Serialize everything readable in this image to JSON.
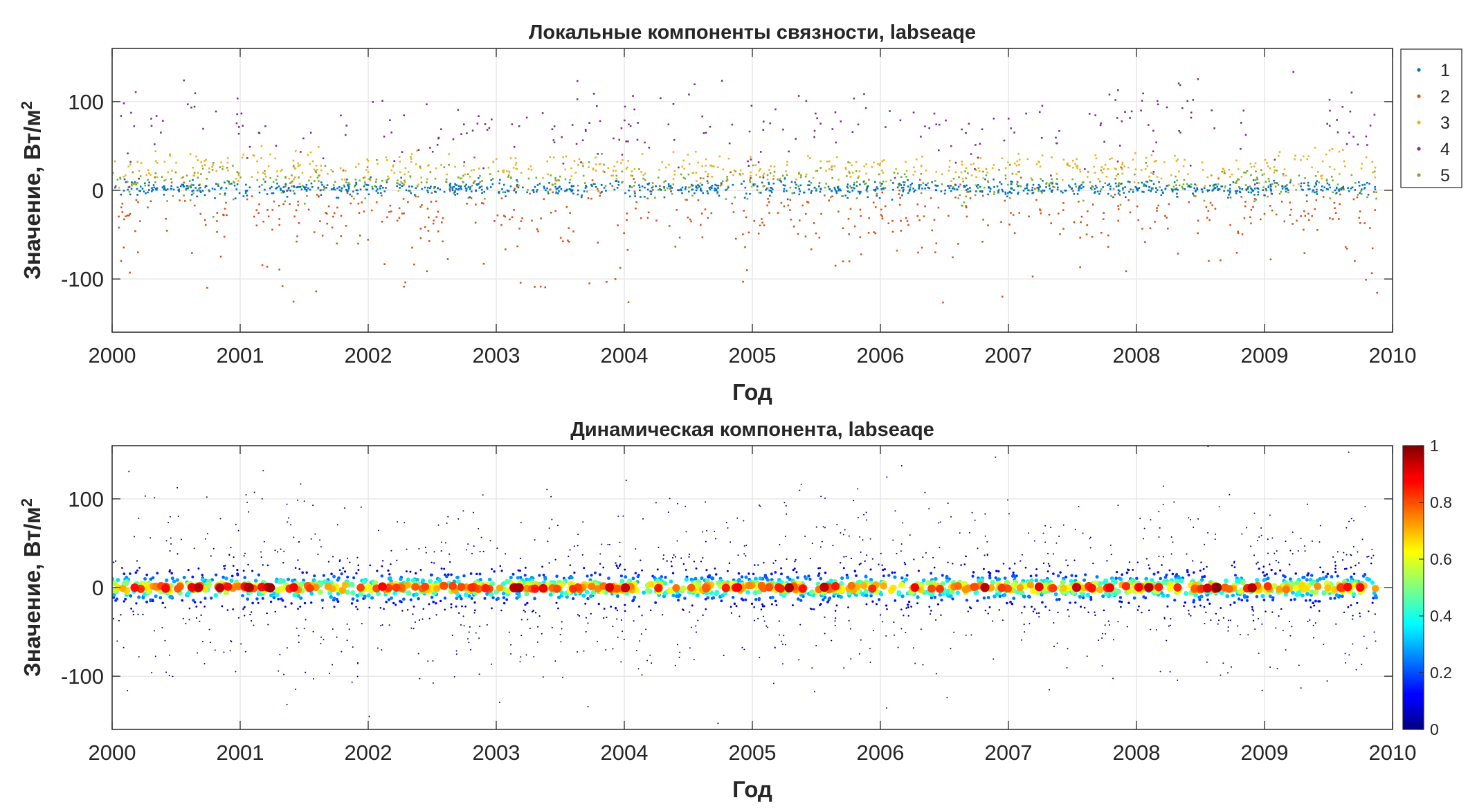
{
  "chart_data": [
    {
      "type": "scatter",
      "title": "Локальные компоненты связности, labseaqe",
      "xlabel": "Год",
      "ylabel": "Значение, Вт/м",
      "ylabel_sup": "2",
      "xlim": [
        2000,
        2010
      ],
      "ylim": [
        -160,
        160
      ],
      "xticks": [
        "2000",
        "2001",
        "2002",
        "2003",
        "2004",
        "2005",
        "2006",
        "2007",
        "2008",
        "2009",
        "2010"
      ],
      "yticks": [
        "-100",
        "0",
        "100"
      ],
      "grid": true,
      "legend_position": "top-right",
      "series": [
        {
          "name": "1",
          "color": "#0072BD",
          "center": 2,
          "spread": 4
        },
        {
          "name": "2",
          "color": "#D95319",
          "center": -25,
          "spread": 18
        },
        {
          "name": "3",
          "color": "#EDB120",
          "center": 25,
          "spread": 10
        },
        {
          "name": "4",
          "color": "#7E2F8E",
          "center": 70,
          "spread": 22
        },
        {
          "name": "5",
          "color": "#77AC30",
          "center": 8,
          "spread": 10
        }
      ]
    },
    {
      "type": "scatter",
      "title": "Динамическая компонента, labseaqe",
      "xlabel": "Год",
      "ylabel": "Значение, Вт/м",
      "ylabel_sup": "2",
      "xlim": [
        2000,
        2010
      ],
      "ylim": [
        -160,
        160
      ],
      "xticks": [
        "2000",
        "2001",
        "2002",
        "2003",
        "2004",
        "2005",
        "2006",
        "2007",
        "2008",
        "2009",
        "2010"
      ],
      "yticks": [
        "-100",
        "0",
        "100"
      ],
      "grid": true,
      "colorbar": {
        "range": [
          0,
          1
        ],
        "ticks": [
          "0",
          "0.2",
          "0.4",
          "0.6",
          "0.8",
          "1"
        ],
        "colormap": "jet",
        "position": "right"
      }
    }
  ]
}
